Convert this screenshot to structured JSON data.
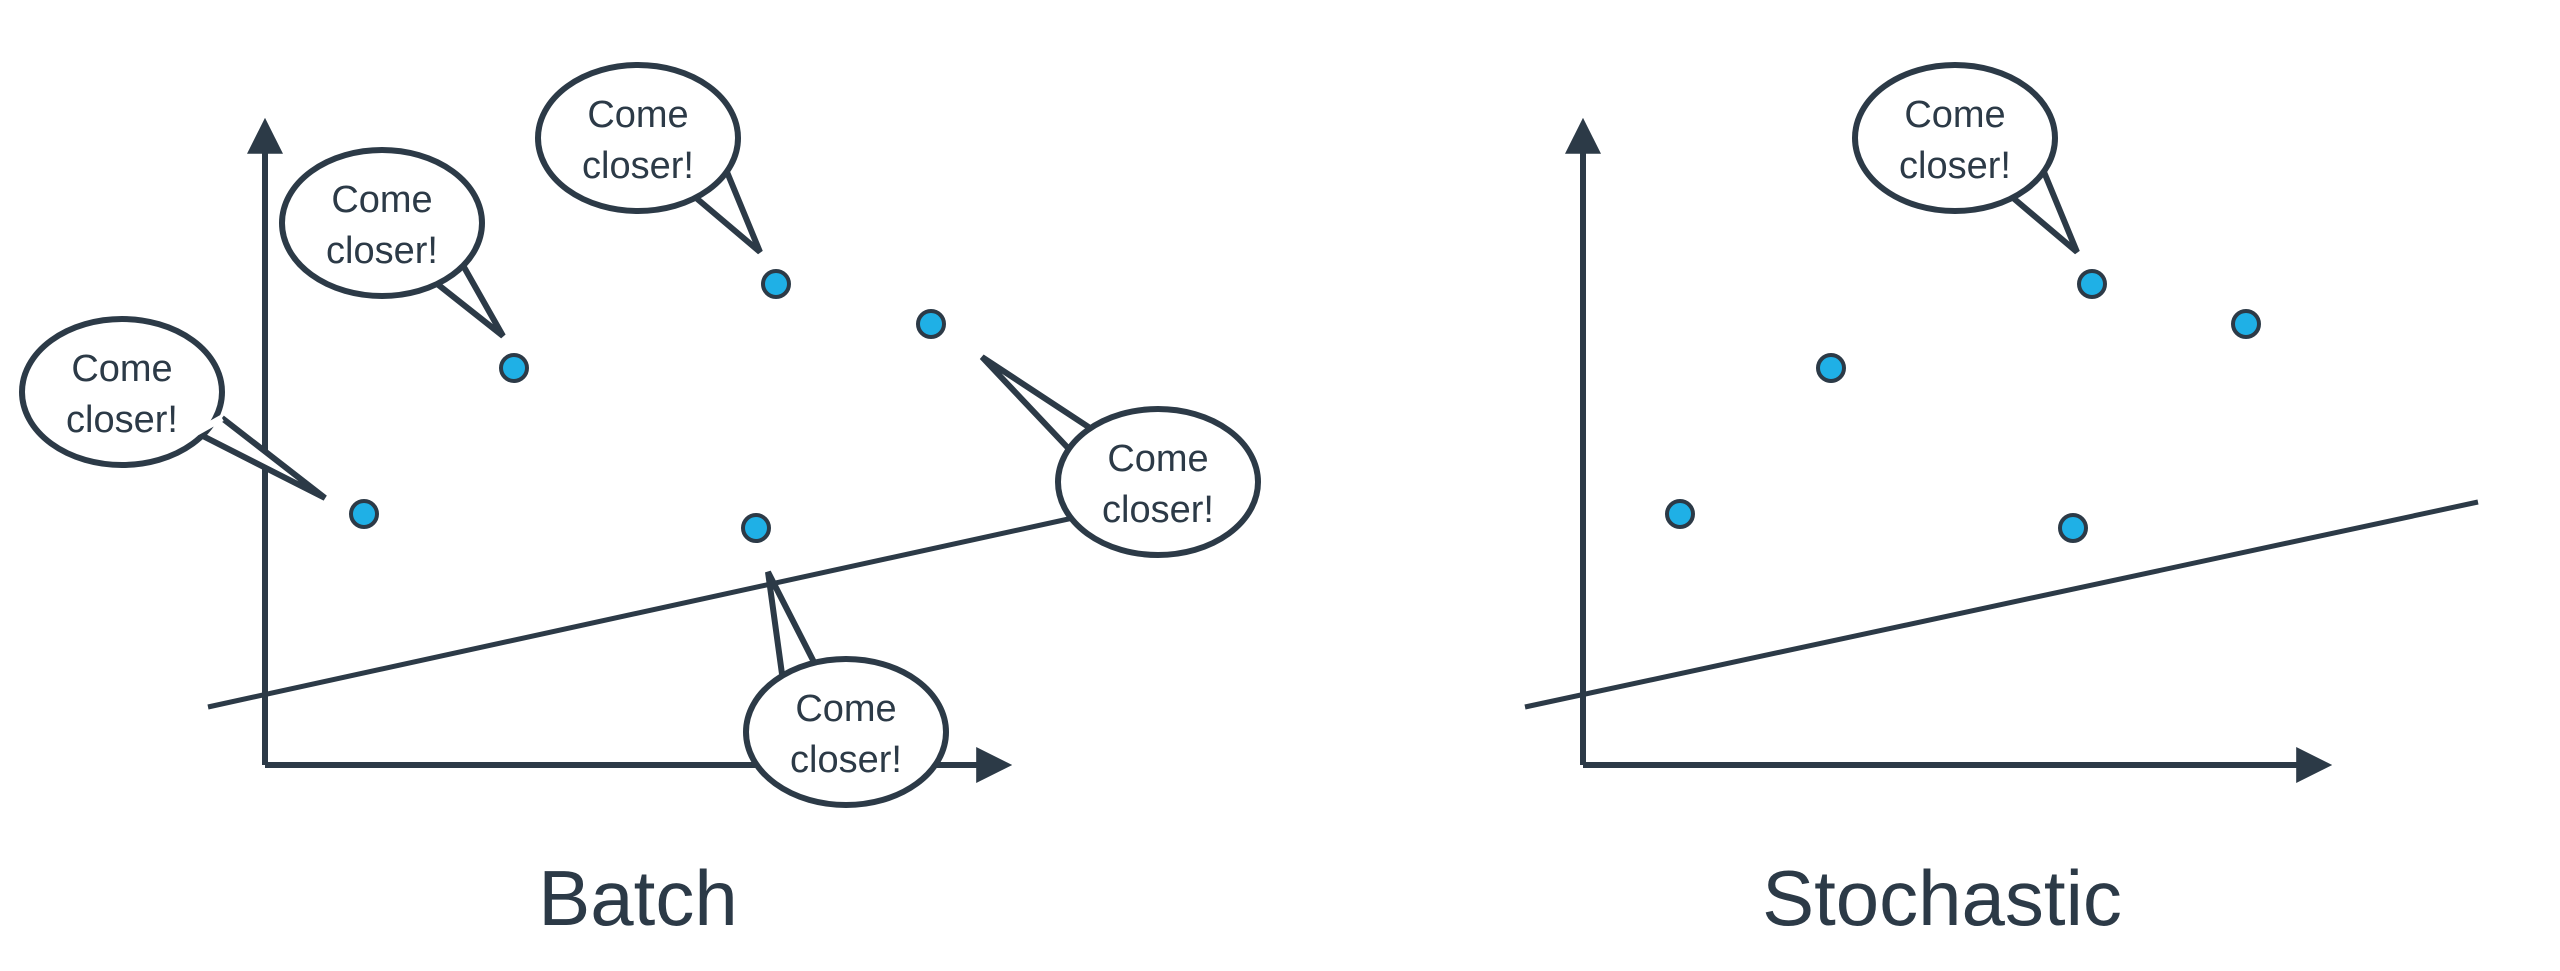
{
  "colors": {
    "ink": "#2c3a47",
    "point_fill": "#1fb0e6",
    "background": "#ffffff"
  },
  "panels": [
    {
      "title": "Batch",
      "bubbles": [
        {
          "line1": "Come",
          "line2": "closer!"
        },
        {
          "line1": "Come",
          "line2": "closer!"
        },
        {
          "line1": "Come",
          "line2": "closer!"
        },
        {
          "line1": "Come",
          "line2": "closer!"
        },
        {
          "line1": "Come",
          "line2": "closer!"
        }
      ]
    },
    {
      "title": "Stochastic",
      "bubbles": [
        {
          "line1": "Come",
          "line2": "closer!"
        }
      ]
    }
  ]
}
